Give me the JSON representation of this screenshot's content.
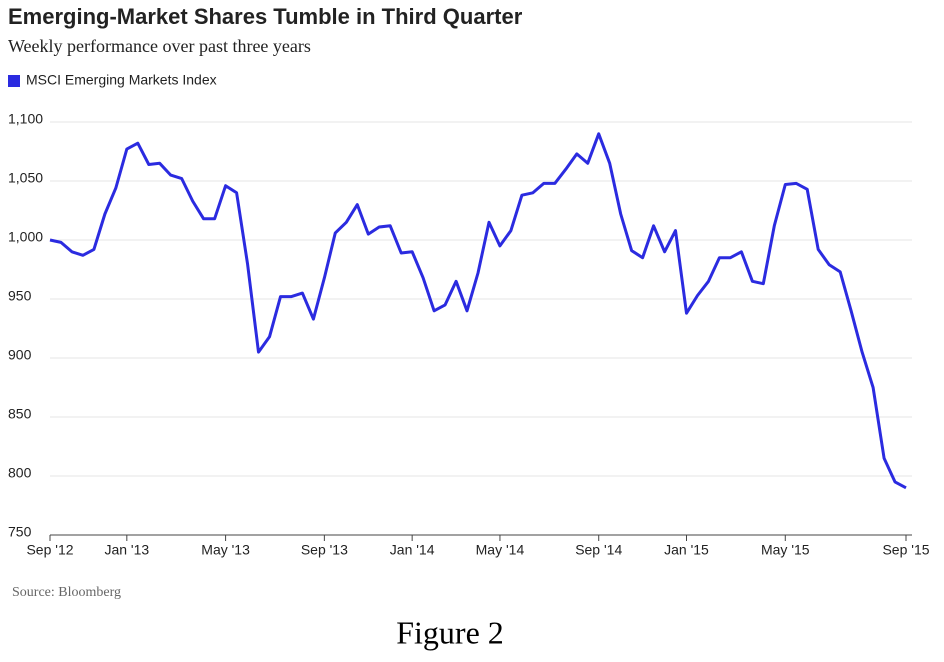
{
  "chart_data": {
    "type": "line",
    "title": "Emerging-Market Shares Tumble in Third Quarter",
    "subtitle": "Weekly performance over past three years",
    "source": "Source: Bloomberg",
    "caption": "Figure 2",
    "legend": "top-left",
    "grid": true,
    "categories": [
      "Sep '12",
      null,
      null,
      null,
      null,
      null,
      null,
      "Jan '13",
      null,
      null,
      null,
      null,
      null,
      null,
      null,
      null,
      "May '13",
      null,
      null,
      null,
      null,
      null,
      null,
      null,
      null,
      "Sep '13",
      null,
      null,
      null,
      null,
      null,
      null,
      null,
      "Jan '14",
      null,
      null,
      null,
      null,
      null,
      null,
      null,
      "May '14",
      null,
      null,
      null,
      null,
      null,
      null,
      null,
      null,
      "Sep '14",
      null,
      null,
      null,
      null,
      null,
      null,
      null,
      "Jan '15",
      null,
      null,
      null,
      null,
      null,
      null,
      null,
      null,
      "May '15",
      null,
      null,
      null,
      null,
      null,
      null,
      null,
      null,
      null,
      null,
      "Sep '15"
    ],
    "series": [
      {
        "name": "MSCI Emerging Markets Index",
        "color": "#2b2be0",
        "values": [
          1000,
          998,
          990,
          987,
          992,
          1022,
          1044,
          1077,
          1082,
          1064,
          1065,
          1055,
          1052,
          1033,
          1018,
          1018,
          1046,
          1040,
          980,
          905,
          918,
          952,
          952,
          955,
          933,
          968,
          1006,
          1015,
          1030,
          1005,
          1011,
          1012,
          989,
          990,
          968,
          940,
          945,
          965,
          940,
          972,
          1015,
          995,
          1008,
          1038,
          1040,
          1048,
          1048,
          1060,
          1073,
          1065,
          1090,
          1065,
          1022,
          991,
          985,
          1012,
          990,
          1008,
          938,
          953,
          965,
          985,
          985,
          990,
          965,
          963,
          1012,
          1047,
          1048,
          1043,
          992,
          979,
          973,
          940,
          905,
          875,
          815,
          795,
          790
        ]
      }
    ],
    "ylim": [
      750,
      1100
    ],
    "yticks": [
      750,
      800,
      850,
      900,
      950,
      {
        "value": 1000,
        "label": "1,000"
      },
      {
        "value": 1050,
        "label": "1,050"
      },
      {
        "value": 1100,
        "label": "1,100"
      }
    ]
  }
}
